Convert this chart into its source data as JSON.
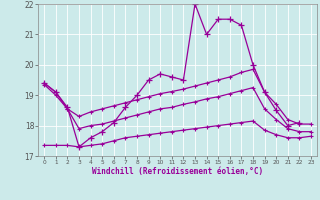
{
  "xlabel": "Windchill (Refroidissement éolien,°C)",
  "background_color": "#cceaea",
  "grid_color": "#aaaaaa",
  "line_color": "#990099",
  "xlim": [
    -0.5,
    23.5
  ],
  "ylim": [
    17,
    22
  ],
  "yticks": [
    17,
    18,
    19,
    20,
    21,
    22
  ],
  "xticks": [
    0,
    1,
    2,
    3,
    4,
    5,
    6,
    7,
    8,
    9,
    10,
    11,
    12,
    13,
    14,
    15,
    16,
    17,
    18,
    19,
    20,
    21,
    22,
    23
  ],
  "s1_x": [
    0,
    1,
    2,
    3,
    4,
    5,
    6,
    7,
    8,
    9,
    10,
    11,
    12,
    13,
    14,
    15,
    16,
    17,
    18,
    19,
    20,
    21,
    22
  ],
  "s1_y": [
    19.4,
    19.1,
    18.6,
    17.3,
    17.6,
    17.8,
    18.1,
    18.6,
    19.0,
    19.5,
    19.7,
    19.6,
    19.5,
    22.0,
    21.0,
    21.5,
    21.5,
    21.3,
    20.0,
    19.1,
    18.5,
    18.0,
    18.1
  ],
  "s2_x": [
    0,
    1,
    2,
    3,
    4,
    5,
    6,
    7,
    8,
    9,
    10,
    11,
    12,
    13,
    14,
    15,
    16,
    17,
    18,
    19,
    20,
    21,
    22,
    23
  ],
  "s2_y": [
    19.4,
    19.1,
    18.55,
    18.3,
    18.45,
    18.55,
    18.65,
    18.75,
    18.85,
    18.95,
    19.05,
    19.12,
    19.2,
    19.3,
    19.4,
    19.5,
    19.6,
    19.75,
    19.85,
    19.1,
    18.7,
    18.2,
    18.05,
    18.05
  ],
  "s3_x": [
    0,
    1,
    2,
    3,
    4,
    5,
    6,
    7,
    8,
    9,
    10,
    11,
    12,
    13,
    14,
    15,
    16,
    17,
    18,
    19,
    20,
    21,
    22,
    23
  ],
  "s3_y": [
    19.35,
    19.0,
    18.55,
    17.9,
    18.0,
    18.05,
    18.15,
    18.25,
    18.35,
    18.45,
    18.55,
    18.6,
    18.7,
    18.78,
    18.88,
    18.95,
    19.05,
    19.15,
    19.25,
    18.55,
    18.2,
    17.9,
    17.8,
    17.8
  ],
  "s4_x": [
    0,
    1,
    2,
    3,
    4,
    5,
    6,
    7,
    8,
    9,
    10,
    11,
    12,
    13,
    14,
    15,
    16,
    17,
    18,
    19,
    20,
    21,
    22,
    23
  ],
  "s4_y": [
    17.35,
    17.35,
    17.35,
    17.3,
    17.35,
    17.4,
    17.5,
    17.6,
    17.65,
    17.7,
    17.75,
    17.8,
    17.85,
    17.9,
    17.95,
    18.0,
    18.05,
    18.1,
    18.15,
    17.85,
    17.7,
    17.6,
    17.6,
    17.65
  ]
}
